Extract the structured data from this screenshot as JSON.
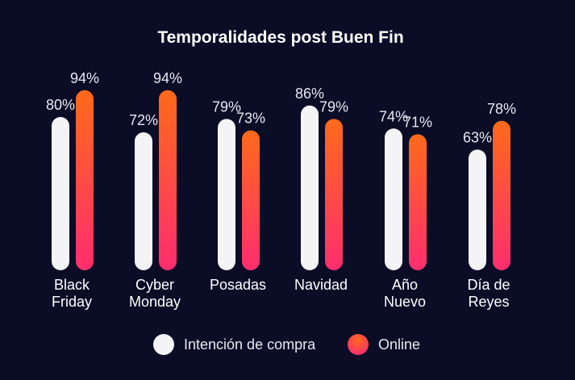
{
  "chart_data": {
    "type": "bar",
    "title": "Temporalidades post Buen Fin",
    "categories": [
      [
        "Black",
        "Friday"
      ],
      [
        "Cyber",
        "Monday"
      ],
      [
        "Posadas"
      ],
      [
        "Navidad"
      ],
      [
        "Año",
        "Nuevo"
      ],
      [
        "Día de",
        "Reyes"
      ]
    ],
    "series": [
      {
        "name": "Intención de compra",
        "values": [
          80,
          72,
          79,
          86,
          74,
          63
        ],
        "labels": [
          "80%",
          "72%",
          "79%",
          "86%",
          "74%",
          "63%"
        ],
        "color": "#f4f4f7"
      },
      {
        "name": "Online",
        "values": [
          94,
          94,
          73,
          79,
          71,
          78
        ],
        "labels": [
          "94%",
          "94%",
          "73%",
          "79%",
          "71%",
          "78%"
        ],
        "color_top": "#ff6a1a",
        "color_bottom": "#ff2d6f"
      }
    ],
    "ylim": [
      0,
      100
    ],
    "grid": false,
    "legend_position": "bottom-center"
  }
}
